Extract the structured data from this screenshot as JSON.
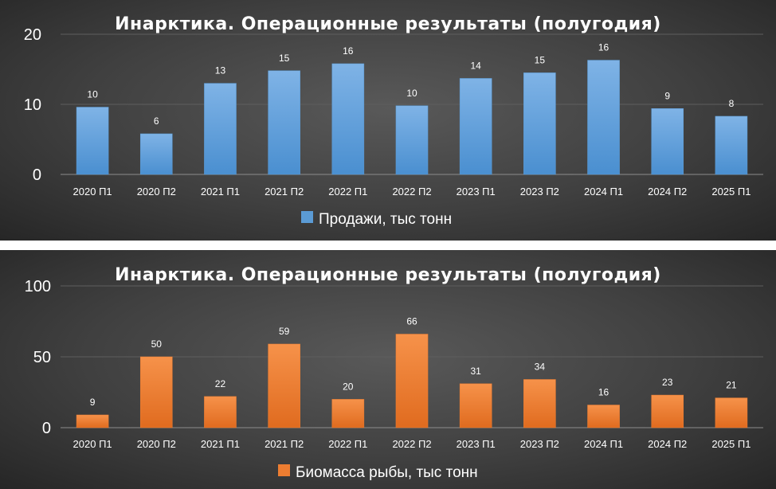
{
  "chart_data": [
    {
      "type": "bar",
      "title": "Инарктика. Операционные результаты (полугодия)",
      "categories": [
        "2020 П1",
        "2020 П2",
        "2021 П1",
        "2021 П2",
        "2022 П1",
        "2022 П2",
        "2023 П1",
        "2023 П2",
        "2024 П1",
        "2024 П2",
        "2025 П1"
      ],
      "series": [
        {
          "name": "Продажи, тыс тонн",
          "color": "#5b9bd5",
          "values": [
            9.6,
            5.8,
            13.0,
            14.8,
            15.8,
            9.8,
            13.7,
            14.5,
            16.3,
            9.4,
            8.3
          ],
          "labels": [
            "10",
            "6",
            "13",
            "15",
            "16",
            "10",
            "14",
            "15",
            "16",
            "9",
            "8"
          ]
        }
      ],
      "yticks": [
        "0",
        "10",
        "20"
      ],
      "ylim": [
        0,
        20
      ],
      "legend": "bottom",
      "grid": true
    },
    {
      "type": "bar",
      "title": "Инарктика. Операционные результаты (полугодия)",
      "categories": [
        "2020 П1",
        "2020 П2",
        "2021 П1",
        "2021 П2",
        "2022 П1",
        "2022 П2",
        "2023 П1",
        "2023 П2",
        "2024 П1",
        "2024 П2",
        "2025 П1"
      ],
      "series": [
        {
          "name": "Биомасса рыбы, тыс тонн",
          "color": "#ed7d31",
          "values": [
            9,
            50,
            22,
            59,
            20,
            66,
            31,
            34,
            16,
            23,
            21
          ],
          "labels": [
            "9",
            "50",
            "22",
            "59",
            "20",
            "66",
            "31",
            "34",
            "16",
            "23",
            "21"
          ]
        }
      ],
      "yticks": [
        "0",
        "50",
        "100"
      ],
      "ylim": [
        0,
        100
      ],
      "legend": "bottom",
      "grid": true
    }
  ]
}
